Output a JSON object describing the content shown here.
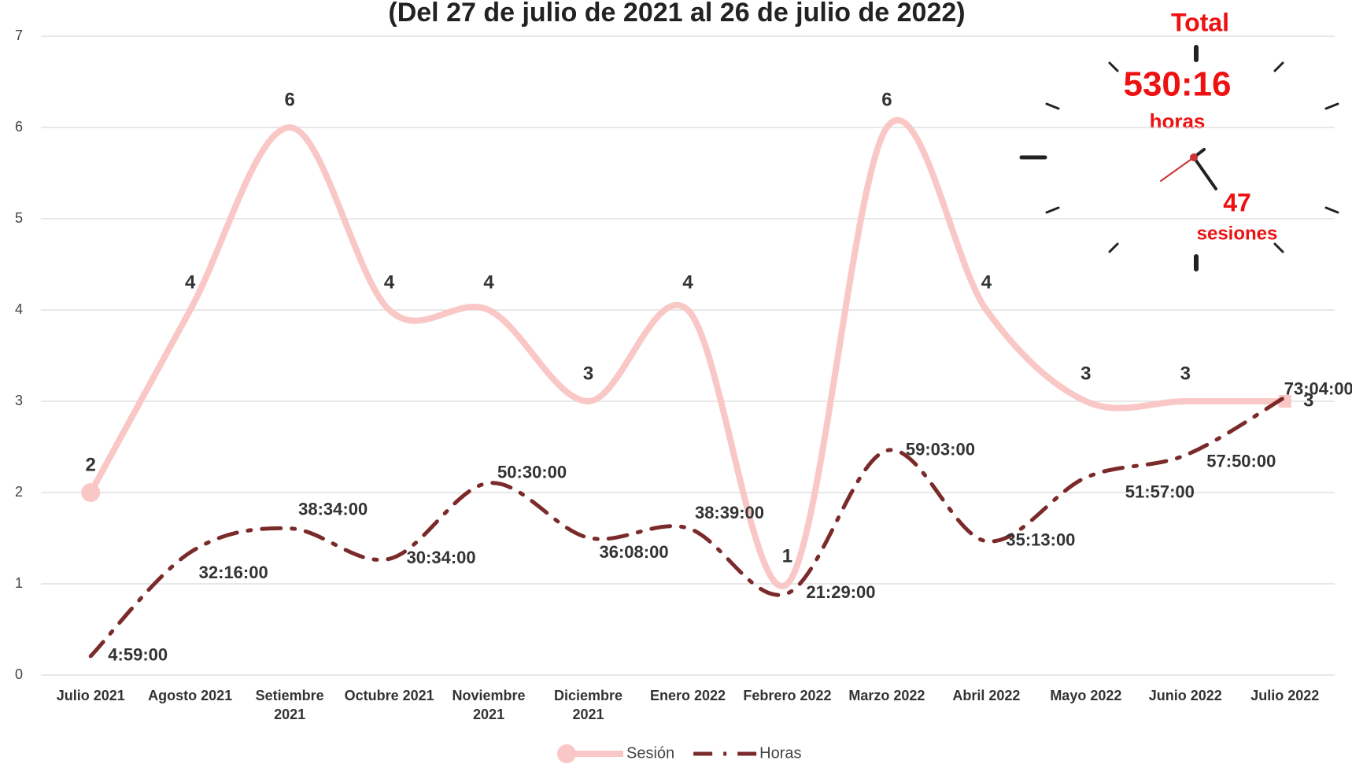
{
  "chart_data": {
    "type": "line",
    "title": "(Del 27 de julio de 2021 al 26 de julio de 2022)",
    "categories": [
      "Julio 2021",
      "Agosto 2021",
      "Setiembre 2021",
      "Octubre 2021",
      "Noviembre 2021",
      "Diciembre 2021",
      "Enero 2022",
      "Febrero 2022",
      "Marzo 2022",
      "Abril 2022",
      "Mayo 2022",
      "Junio 2022",
      "Julio 2022"
    ],
    "series": [
      {
        "name": "Sesión",
        "color": "#f9c8c6",
        "style": "solid",
        "marker": "circle",
        "values": [
          2,
          4,
          6,
          4,
          4,
          3,
          4,
          1,
          6,
          4,
          3,
          3,
          3
        ]
      },
      {
        "name": "Horas",
        "color": "#7b2a2a",
        "style": "dash-dot",
        "values": [
          0.2076,
          1.3444,
          1.6069,
          1.2736,
          2.1042,
          1.5056,
          1.6104,
          0.8951,
          2.4604,
          1.4674,
          2.1646,
          2.4097,
          3.0444
        ],
        "value_labels": [
          "4:59:00",
          "32:16:00",
          "38:34:00",
          "30:34:00",
          "50:30:00",
          "36:08:00",
          "38:39:00",
          "21:29:00",
          "59:03:00",
          "35:13:00",
          "51:57:00",
          "57:50:00",
          "73:04:00"
        ]
      }
    ],
    "ylim": [
      0,
      7
    ],
    "yticks": [
      0,
      1,
      2,
      3,
      4,
      5,
      6,
      7
    ],
    "grid": true,
    "legend": "bottom",
    "annotations": {
      "total": "Total",
      "hours": "530:16",
      "hours_unit": "horas",
      "sessions": "47",
      "sessions_unit": "sesiones"
    }
  }
}
